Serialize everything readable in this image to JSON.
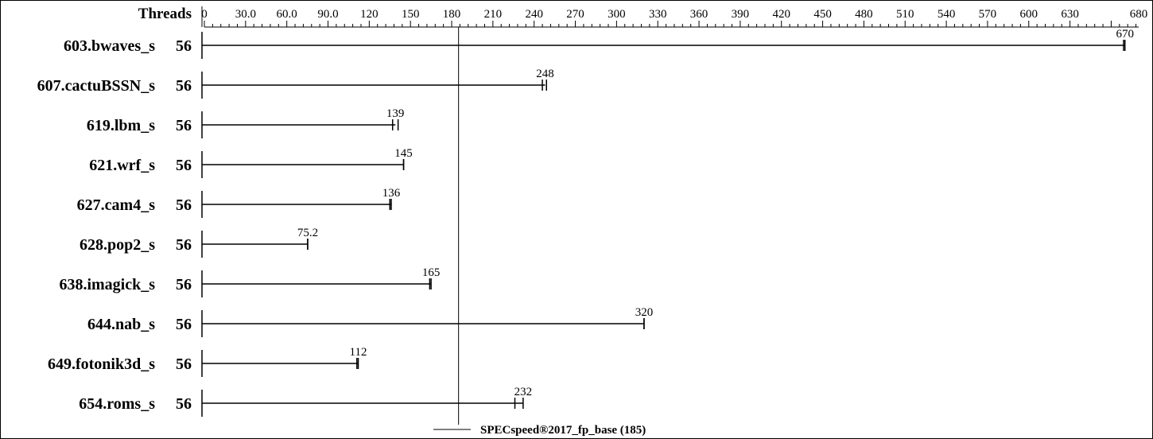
{
  "chart_data": {
    "type": "bar",
    "header": "Threads",
    "x_ticks": [
      "0",
      "30.0",
      "60.0",
      "90.0",
      "120",
      "150",
      "180",
      "210",
      "240",
      "270",
      "300",
      "330",
      "360",
      "390",
      "420",
      "450",
      "480",
      "510",
      "540",
      "570",
      "600",
      "630",
      "680"
    ],
    "xlim": [
      0,
      680
    ],
    "categories": [
      "603.bwaves_s",
      "607.cactuBSSN_s",
      "619.lbm_s",
      "621.wrf_s",
      "627.cam4_s",
      "628.pop2_s",
      "638.imagick_s",
      "644.nab_s",
      "649.fotonik3d_s",
      "654.roms_s"
    ],
    "threads": [
      "56",
      "56",
      "56",
      "56",
      "56",
      "56",
      "56",
      "56",
      "56",
      "56"
    ],
    "values": [
      670,
      248,
      139,
      145,
      136,
      75.2,
      165,
      320,
      112,
      232
    ],
    "value_labels": [
      "670",
      "248",
      "139",
      "145",
      "136",
      "75.2",
      "165",
      "320",
      "112",
      "232"
    ],
    "run_markers": [
      [
        670,
        669
      ],
      [
        246,
        249
      ],
      [
        137,
        141
      ],
      [
        145,
        145
      ],
      [
        135,
        136
      ],
      [
        75.2,
        75.2
      ],
      [
        164,
        165
      ],
      [
        320,
        320
      ],
      [
        111,
        112
      ],
      [
        226,
        232
      ]
    ],
    "reference_line": {
      "value": 185,
      "label": "SPECspeed®2017_fp_base (185)"
    }
  }
}
